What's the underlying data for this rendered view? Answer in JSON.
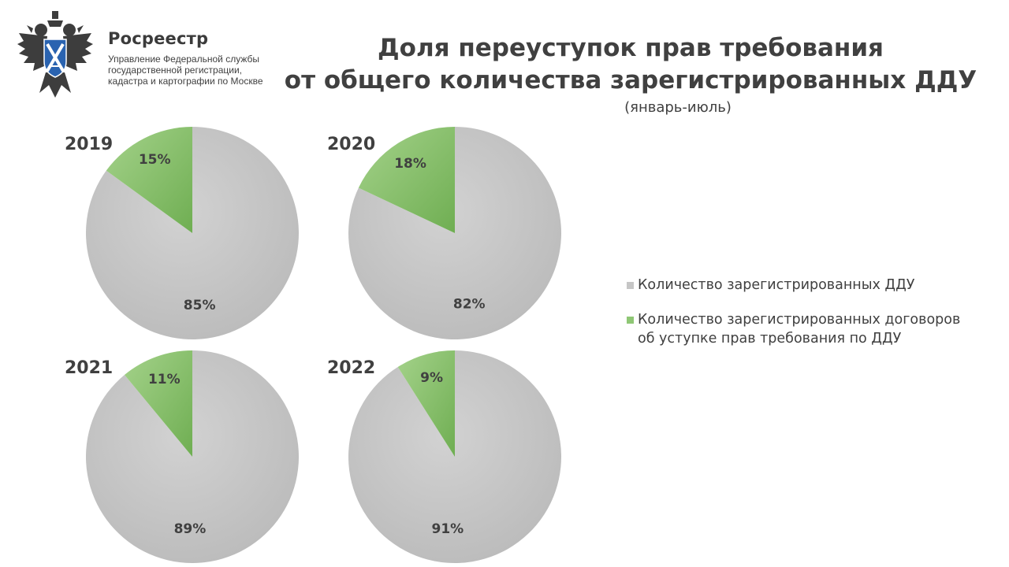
{
  "header": {
    "brand_name": "Росреестр",
    "brand_sub": [
      "Управление Федеральной службы",
      "государственной регистрации,",
      "кадастра и картографии по Москве"
    ],
    "title_line1": "Доля переуступок прав требования",
    "title_line2": "от общего количества зарегистрированных ДДУ",
    "subtitle": "(январь-июль)"
  },
  "colors": {
    "gray": "#c6c6c6",
    "green": "#8fc775",
    "green_dark": "#6fae52"
  },
  "legend": {
    "item1": "Количество зарегистрированных ДДУ",
    "item2_line1": "Количество зарегистрированных договоров",
    "item2_line2": "об уступке прав требования по ДДУ"
  },
  "chart_data": [
    {
      "type": "pie",
      "title": "2019",
      "labels": [
        "Количество зарегистрированных ДДУ",
        "Количество зарегистрированных договоров об уступке прав требования по ДДУ"
      ],
      "values": [
        85,
        15
      ],
      "value_labels": [
        "85%",
        "15%"
      ]
    },
    {
      "type": "pie",
      "title": "2020",
      "labels": [
        "Количество зарегистрированных ДДУ",
        "Количество зарегистрированных договоров об уступке прав требования по ДДУ"
      ],
      "values": [
        82,
        18
      ],
      "value_labels": [
        "82%",
        "18%"
      ]
    },
    {
      "type": "pie",
      "title": "2021",
      "labels": [
        "Количество зарегистрированных ДДУ",
        "Количество зарегистрированных договоров об уступке прав требования по ДДУ"
      ],
      "values": [
        89,
        11
      ],
      "value_labels": [
        "89%",
        "11%"
      ]
    },
    {
      "type": "pie",
      "title": "2022",
      "labels": [
        "Количество зарегистрированных ДДУ",
        "Количество зарегистрированных договоров об уступке прав требования по ДДУ"
      ],
      "values": [
        91,
        9
      ],
      "value_labels": [
        "91%",
        "9%"
      ]
    }
  ]
}
